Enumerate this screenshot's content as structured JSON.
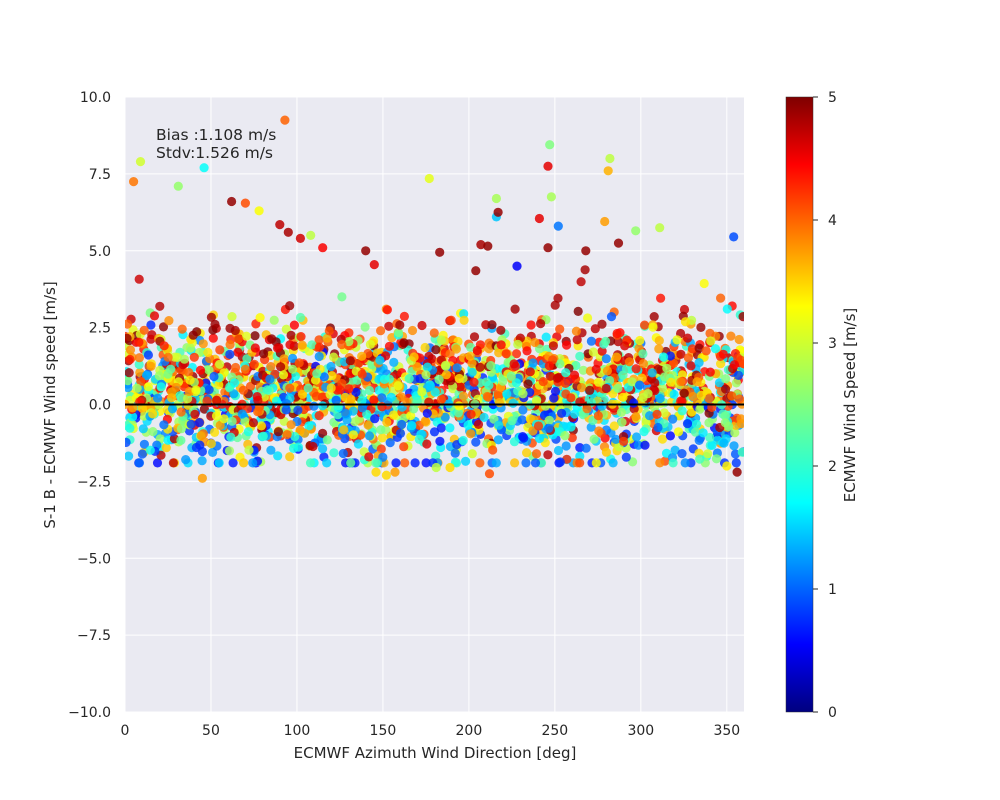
{
  "chart_data": {
    "type": "scatter",
    "title": "",
    "xlabel": "ECMWF Azimuth Wind Direction [deg]",
    "ylabel": "S-1 B - ECMWF Wind speed [m/s]",
    "xlim": [
      0,
      360
    ],
    "ylim": [
      -10,
      10
    ],
    "x_ticks": [
      "0",
      "50",
      "100",
      "150",
      "200",
      "250",
      "300",
      "350"
    ],
    "y_ticks": [
      "10.0",
      "7.5",
      "5.0",
      "2.5",
      "0.0",
      "−2.5",
      "−5.0",
      "−7.5",
      "−10.0"
    ],
    "grid": true,
    "annotations": {
      "bias": "Bias :1.108 m/s",
      "stdv": "Stdv:1.526 m/s"
    },
    "zero_line": 0,
    "colorbar": {
      "label": "ECMWF Wind Speed [m/s]",
      "range": [
        0,
        5
      ],
      "ticks": [
        "0",
        "1",
        "2",
        "3",
        "4",
        "5"
      ],
      "colormap": "jet"
    },
    "outlier_points": [
      {
        "x": 5,
        "y": 7.25,
        "c": 3.8
      },
      {
        "x": 9,
        "y": 7.9,
        "c": 2.9
      },
      {
        "x": 31,
        "y": 7.1,
        "c": 2.6
      },
      {
        "x": 46,
        "y": 7.7,
        "c": 1.9
      },
      {
        "x": 93,
        "y": 9.25,
        "c": 3.9
      },
      {
        "x": 62,
        "y": 6.6,
        "c": 4.9
      },
      {
        "x": 70,
        "y": 6.55,
        "c": 4.0
      },
      {
        "x": 78,
        "y": 6.3,
        "c": 3.1
      },
      {
        "x": 90,
        "y": 5.85,
        "c": 4.7
      },
      {
        "x": 95,
        "y": 5.6,
        "c": 4.8
      },
      {
        "x": 102,
        "y": 5.4,
        "c": 4.6
      },
      {
        "x": 108,
        "y": 5.5,
        "c": 2.8
      },
      {
        "x": 115,
        "y": 5.1,
        "c": 4.4
      },
      {
        "x": 140,
        "y": 5.0,
        "c": 4.9
      },
      {
        "x": 145,
        "y": 4.55,
        "c": 4.5
      },
      {
        "x": 177,
        "y": 7.35,
        "c": 3.0
      },
      {
        "x": 183,
        "y": 4.95,
        "c": 4.9
      },
      {
        "x": 204,
        "y": 4.35,
        "c": 4.9
      },
      {
        "x": 207,
        "y": 5.2,
        "c": 4.8
      },
      {
        "x": 211,
        "y": 5.15,
        "c": 4.9
      },
      {
        "x": 216,
        "y": 6.7,
        "c": 2.7
      },
      {
        "x": 216,
        "y": 6.1,
        "c": 1.6
      },
      {
        "x": 217,
        "y": 6.25,
        "c": 4.9
      },
      {
        "x": 228,
        "y": 4.5,
        "c": 0.6
      },
      {
        "x": 241,
        "y": 6.05,
        "c": 4.5
      },
      {
        "x": 246,
        "y": 7.75,
        "c": 4.5
      },
      {
        "x": 247,
        "y": 8.45,
        "c": 2.5
      },
      {
        "x": 248,
        "y": 6.75,
        "c": 2.7
      },
      {
        "x": 252,
        "y": 5.8,
        "c": 1.2
      },
      {
        "x": 246,
        "y": 5.1,
        "c": 4.9
      },
      {
        "x": 268,
        "y": 5.0,
        "c": 4.9
      },
      {
        "x": 279,
        "y": 5.95,
        "c": 3.6
      },
      {
        "x": 281,
        "y": 7.6,
        "c": 3.5
      },
      {
        "x": 282,
        "y": 8.0,
        "c": 2.8
      },
      {
        "x": 287,
        "y": 5.25,
        "c": 4.9
      },
      {
        "x": 297,
        "y": 5.65,
        "c": 2.6
      },
      {
        "x": 311,
        "y": 5.75,
        "c": 2.8
      },
      {
        "x": 354,
        "y": 5.45,
        "c": 1.0
      },
      {
        "x": 45,
        "y": -2.4,
        "c": 3.6
      },
      {
        "x": 69,
        "y": -1.9,
        "c": 3.4
      },
      {
        "x": 146,
        "y": -2.2,
        "c": 3.3
      },
      {
        "x": 152,
        "y": -2.3,
        "c": 3.3
      },
      {
        "x": 157,
        "y": -2.2,
        "c": 3.6
      },
      {
        "x": 181,
        "y": -2.05,
        "c": 2.8
      },
      {
        "x": 189,
        "y": -2.05,
        "c": 3.3
      },
      {
        "x": 212,
        "y": -2.25,
        "c": 4.0
      },
      {
        "x": 202,
        "y": -1.6,
        "c": 2.9
      },
      {
        "x": 280,
        "y": -1.55,
        "c": 3.4
      },
      {
        "x": 290,
        "y": -1.2,
        "c": 4.1
      },
      {
        "x": 350,
        "y": -2.0,
        "c": 3.2
      },
      {
        "x": 356,
        "y": -2.2,
        "c": 4.9
      },
      {
        "x": 359,
        "y": -1.55,
        "c": 2.2
      }
    ],
    "point_cloud": {
      "count": 2400,
      "x_range": [
        0,
        360
      ],
      "y_core_range": [
        -1.5,
        3.8
      ],
      "c_range": [
        0.6,
        5.0
      ]
    }
  }
}
